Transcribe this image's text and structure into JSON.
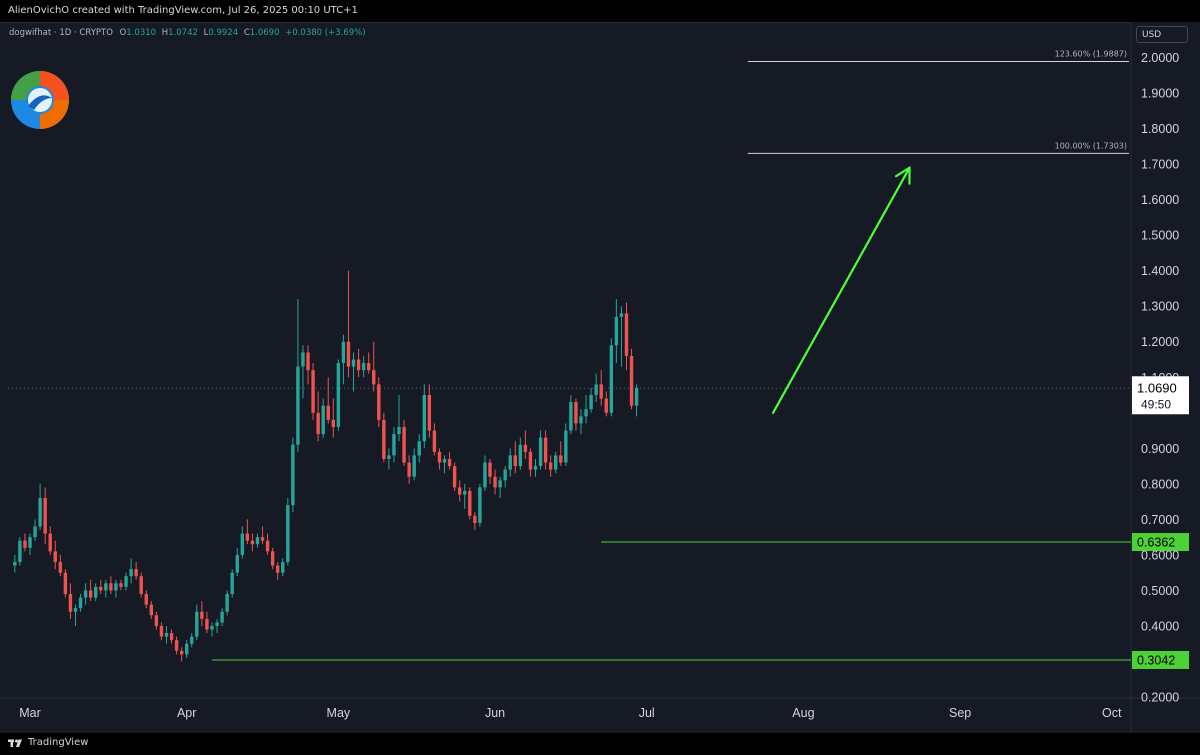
{
  "header": {
    "credit": "AlienOvichO created with TradingView.com, Jul 26, 2025 00:10 UTC+1"
  },
  "legend": {
    "symbol": "dogwifhat · 1D · CRYPTO",
    "open_key": "O",
    "open": "1.0310",
    "high_key": "H",
    "high": "1.0742",
    "low_key": "L",
    "low": "0.9924",
    "close_key": "C",
    "close": "1.0690",
    "change": "+0.0380 (+3.69%)"
  },
  "currency_label": "USD",
  "footer": {
    "brand": "TradingView"
  },
  "colors": {
    "background": "#161a25",
    "up": "#26a69a",
    "down": "#ef5350",
    "support": "#4cd137",
    "arrow": "#4cff3a",
    "fib": "#d1d4dc"
  },
  "chart_data": {
    "type": "candlestick",
    "ylim": [
      0.2,
      2.1
    ],
    "y_ticks": [
      "2.0000",
      "1.9000",
      "1.8000",
      "1.7000",
      "1.6000",
      "1.5000",
      "1.4000",
      "1.3000",
      "1.2000",
      "1.1000",
      "0.9000",
      "0.8000",
      "0.7000",
      "0.6000",
      "0.5000",
      "0.4000",
      "0.2000"
    ],
    "x_ticks": [
      "Mar",
      "Apr",
      "May",
      "Jun",
      "Jul",
      "Aug",
      "Sep",
      "Oct"
    ],
    "x_tick_days": [
      0,
      31,
      61,
      92,
      122,
      153,
      184,
      214
    ],
    "last_price": "1.0690",
    "countdown": "49:50",
    "levels": [
      {
        "value": 0.3042,
        "label": "0.3042",
        "start_day": 36
      },
      {
        "value": 0.6362,
        "label": "0.6362",
        "start_day": 113
      }
    ],
    "fib_levels": [
      {
        "value": 1.7303,
        "label": "100.00% (1.7303)",
        "start_day": 142
      },
      {
        "value": 1.9887,
        "label": "123.60% (1.9887)",
        "start_day": 142
      }
    ],
    "projection_arrow": {
      "from_day": 147,
      "from_value": 1.0,
      "to_day": 174,
      "to_value": 1.69
    },
    "candles": [
      [
        -3,
        0.57,
        0.6,
        0.55,
        0.58
      ],
      [
        -2,
        0.58,
        0.65,
        0.57,
        0.64
      ],
      [
        -1,
        0.64,
        0.66,
        0.61,
        0.62
      ],
      [
        0,
        0.62,
        0.66,
        0.6,
        0.65
      ],
      [
        1,
        0.65,
        0.7,
        0.64,
        0.68
      ],
      [
        2,
        0.68,
        0.8,
        0.67,
        0.76
      ],
      [
        3,
        0.76,
        0.79,
        0.63,
        0.66
      ],
      [
        4,
        0.66,
        0.68,
        0.6,
        0.61
      ],
      [
        5,
        0.61,
        0.64,
        0.56,
        0.58
      ],
      [
        6,
        0.58,
        0.6,
        0.54,
        0.55
      ],
      [
        7,
        0.55,
        0.56,
        0.48,
        0.49
      ],
      [
        8,
        0.49,
        0.52,
        0.42,
        0.44
      ],
      [
        9,
        0.44,
        0.46,
        0.4,
        0.45
      ],
      [
        10,
        0.45,
        0.49,
        0.44,
        0.48
      ],
      [
        11,
        0.48,
        0.52,
        0.46,
        0.5
      ],
      [
        12,
        0.5,
        0.53,
        0.47,
        0.48
      ],
      [
        13,
        0.48,
        0.52,
        0.47,
        0.51
      ],
      [
        14,
        0.51,
        0.53,
        0.49,
        0.5
      ],
      [
        15,
        0.5,
        0.53,
        0.48,
        0.52
      ],
      [
        16,
        0.52,
        0.54,
        0.49,
        0.5
      ],
      [
        17,
        0.5,
        0.53,
        0.48,
        0.52
      ],
      [
        18,
        0.52,
        0.53,
        0.5,
        0.51
      ],
      [
        19,
        0.51,
        0.55,
        0.5,
        0.54
      ],
      [
        20,
        0.54,
        0.59,
        0.52,
        0.56
      ],
      [
        21,
        0.56,
        0.58,
        0.53,
        0.54
      ],
      [
        22,
        0.54,
        0.55,
        0.48,
        0.49
      ],
      [
        23,
        0.49,
        0.5,
        0.45,
        0.46
      ],
      [
        24,
        0.46,
        0.47,
        0.42,
        0.43
      ],
      [
        25,
        0.43,
        0.44,
        0.39,
        0.4
      ],
      [
        26,
        0.4,
        0.41,
        0.36,
        0.37
      ],
      [
        27,
        0.37,
        0.4,
        0.35,
        0.38
      ],
      [
        28,
        0.38,
        0.39,
        0.35,
        0.36
      ],
      [
        29,
        0.36,
        0.37,
        0.32,
        0.33
      ],
      [
        30,
        0.33,
        0.34,
        0.3,
        0.32
      ],
      [
        31,
        0.32,
        0.36,
        0.31,
        0.35
      ],
      [
        32,
        0.35,
        0.38,
        0.34,
        0.37
      ],
      [
        33,
        0.37,
        0.46,
        0.36,
        0.44
      ],
      [
        34,
        0.44,
        0.47,
        0.4,
        0.42
      ],
      [
        35,
        0.42,
        0.44,
        0.38,
        0.39
      ],
      [
        36,
        0.39,
        0.41,
        0.37,
        0.4
      ],
      [
        37,
        0.4,
        0.42,
        0.38,
        0.41
      ],
      [
        38,
        0.41,
        0.45,
        0.4,
        0.44
      ],
      [
        39,
        0.44,
        0.5,
        0.43,
        0.49
      ],
      [
        40,
        0.49,
        0.56,
        0.48,
        0.55
      ],
      [
        41,
        0.55,
        0.62,
        0.54,
        0.6
      ],
      [
        42,
        0.6,
        0.68,
        0.59,
        0.66
      ],
      [
        43,
        0.66,
        0.7,
        0.63,
        0.64
      ],
      [
        44,
        0.64,
        0.66,
        0.61,
        0.63
      ],
      [
        45,
        0.63,
        0.66,
        0.62,
        0.65
      ],
      [
        46,
        0.65,
        0.68,
        0.63,
        0.64
      ],
      [
        47,
        0.64,
        0.66,
        0.6,
        0.61
      ],
      [
        48,
        0.61,
        0.62,
        0.56,
        0.57
      ],
      [
        49,
        0.57,
        0.58,
        0.53,
        0.55
      ],
      [
        50,
        0.55,
        0.59,
        0.54,
        0.58
      ],
      [
        51,
        0.58,
        0.76,
        0.57,
        0.74
      ],
      [
        52,
        0.74,
        0.93,
        0.72,
        0.91
      ],
      [
        53,
        0.91,
        1.32,
        0.89,
        1.13
      ],
      [
        54,
        1.13,
        1.19,
        1.04,
        1.17
      ],
      [
        55,
        1.17,
        1.19,
        1.08,
        1.12
      ],
      [
        56,
        1.12,
        1.14,
        0.98,
        1.0
      ],
      [
        57,
        1.0,
        1.06,
        0.92,
        0.94
      ],
      [
        58,
        0.94,
        1.04,
        0.93,
        1.02
      ],
      [
        59,
        1.02,
        1.1,
        0.97,
        0.98
      ],
      [
        60,
        0.98,
        1.04,
        0.93,
        0.96
      ],
      [
        61,
        0.96,
        1.15,
        0.95,
        1.14
      ],
      [
        62,
        1.14,
        1.22,
        1.08,
        1.2
      ],
      [
        63,
        1.2,
        1.4,
        1.1,
        1.13
      ],
      [
        64,
        1.13,
        1.17,
        1.06,
        1.15
      ],
      [
        65,
        1.15,
        1.18,
        1.1,
        1.12
      ],
      [
        66,
        1.12,
        1.16,
        1.1,
        1.14
      ],
      [
        67,
        1.14,
        1.17,
        1.11,
        1.12
      ],
      [
        68,
        1.12,
        1.2,
        1.06,
        1.08
      ],
      [
        69,
        1.08,
        1.1,
        0.96,
        0.98
      ],
      [
        70,
        0.98,
        1.0,
        0.86,
        0.87
      ],
      [
        71,
        0.87,
        0.9,
        0.84,
        0.88
      ],
      [
        72,
        0.88,
        0.96,
        0.86,
        0.94
      ],
      [
        73,
        0.94,
        1.05,
        0.92,
        0.96
      ],
      [
        74,
        0.96,
        0.98,
        0.85,
        0.86
      ],
      [
        75,
        0.86,
        0.88,
        0.8,
        0.82
      ],
      [
        76,
        0.82,
        0.9,
        0.81,
        0.88
      ],
      [
        77,
        0.88,
        0.94,
        0.86,
        0.92
      ],
      [
        78,
        0.92,
        1.08,
        0.9,
        1.05
      ],
      [
        79,
        1.05,
        1.08,
        0.93,
        0.95
      ],
      [
        80,
        0.95,
        0.97,
        0.88,
        0.89
      ],
      [
        81,
        0.89,
        0.9,
        0.84,
        0.86
      ],
      [
        82,
        0.86,
        0.88,
        0.83,
        0.87
      ],
      [
        83,
        0.87,
        0.89,
        0.84,
        0.85
      ],
      [
        84,
        0.85,
        0.86,
        0.78,
        0.79
      ],
      [
        85,
        0.79,
        0.81,
        0.75,
        0.77
      ],
      [
        86,
        0.77,
        0.8,
        0.73,
        0.78
      ],
      [
        87,
        0.78,
        0.79,
        0.7,
        0.71
      ],
      [
        88,
        0.71,
        0.72,
        0.67,
        0.69
      ],
      [
        89,
        0.69,
        0.8,
        0.68,
        0.79
      ],
      [
        90,
        0.79,
        0.88,
        0.78,
        0.86
      ],
      [
        91,
        0.86,
        0.87,
        0.8,
        0.82
      ],
      [
        92,
        0.82,
        0.84,
        0.77,
        0.79
      ],
      [
        93,
        0.79,
        0.82,
        0.76,
        0.81
      ],
      [
        94,
        0.81,
        0.85,
        0.79,
        0.84
      ],
      [
        95,
        0.84,
        0.9,
        0.82,
        0.88
      ],
      [
        96,
        0.88,
        0.92,
        0.83,
        0.85
      ],
      [
        97,
        0.85,
        0.93,
        0.84,
        0.91
      ],
      [
        98,
        0.91,
        0.95,
        0.87,
        0.89
      ],
      [
        99,
        0.89,
        0.9,
        0.82,
        0.84
      ],
      [
        100,
        0.84,
        0.87,
        0.82,
        0.85
      ],
      [
        101,
        0.85,
        0.95,
        0.84,
        0.93
      ],
      [
        102,
        0.93,
        0.95,
        0.84,
        0.86
      ],
      [
        103,
        0.86,
        0.88,
        0.82,
        0.84
      ],
      [
        104,
        0.84,
        0.89,
        0.83,
        0.88
      ],
      [
        105,
        0.88,
        0.92,
        0.85,
        0.86
      ],
      [
        106,
        0.86,
        0.97,
        0.85,
        0.95
      ],
      [
        107,
        0.95,
        1.05,
        0.94,
        1.03
      ],
      [
        108,
        1.03,
        1.04,
        0.95,
        0.97
      ],
      [
        109,
        0.97,
        1.01,
        0.94,
        0.99
      ],
      [
        110,
        0.99,
        1.05,
        0.97,
        1.01
      ],
      [
        111,
        1.01,
        1.07,
        1.0,
        1.05
      ],
      [
        112,
        1.05,
        1.11,
        1.03,
        1.08
      ],
      [
        113,
        1.08,
        1.12,
        1.02,
        1.04
      ],
      [
        114,
        1.04,
        1.06,
        0.99,
        1.0
      ],
      [
        115,
        1.0,
        1.21,
        0.99,
        1.19
      ],
      [
        116,
        1.19,
        1.32,
        1.14,
        1.27
      ],
      [
        117,
        1.27,
        1.3,
        1.13,
        1.28
      ],
      [
        118,
        1.28,
        1.31,
        1.12,
        1.16
      ],
      [
        119,
        1.16,
        1.18,
        1.01,
        1.02
      ],
      [
        120,
        1.02,
        1.08,
        0.99,
        1.07
      ]
    ]
  }
}
